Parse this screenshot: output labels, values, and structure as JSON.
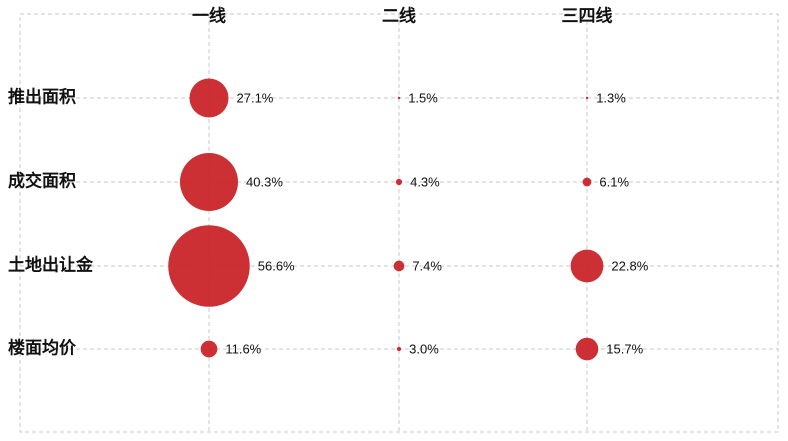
{
  "chart_data": {
    "type": "bubble",
    "categories": [
      "一线",
      "二线",
      "三四线"
    ],
    "rows": [
      {
        "name": "推出面积",
        "values": [
          27.1,
          1.5,
          1.3
        ],
        "value_labels": [
          "27.1%",
          "1.5%",
          "1.3%"
        ]
      },
      {
        "name": "成交面积",
        "values": [
          40.3,
          4.3,
          6.1
        ],
        "value_labels": [
          "40.3%",
          "4.3%",
          "6.1%"
        ]
      },
      {
        "name": "土地出让金",
        "values": [
          56.6,
          7.4,
          22.8
        ],
        "value_labels": [
          "56.6%",
          "7.4%",
          "22.8%"
        ]
      },
      {
        "name": "楼面均价",
        "values": [
          11.6,
          3.0,
          15.7
        ],
        "value_labels": [
          "11.6%",
          "3.0%",
          "15.7%"
        ]
      }
    ],
    "color": "#c9252a",
    "grid": true
  }
}
